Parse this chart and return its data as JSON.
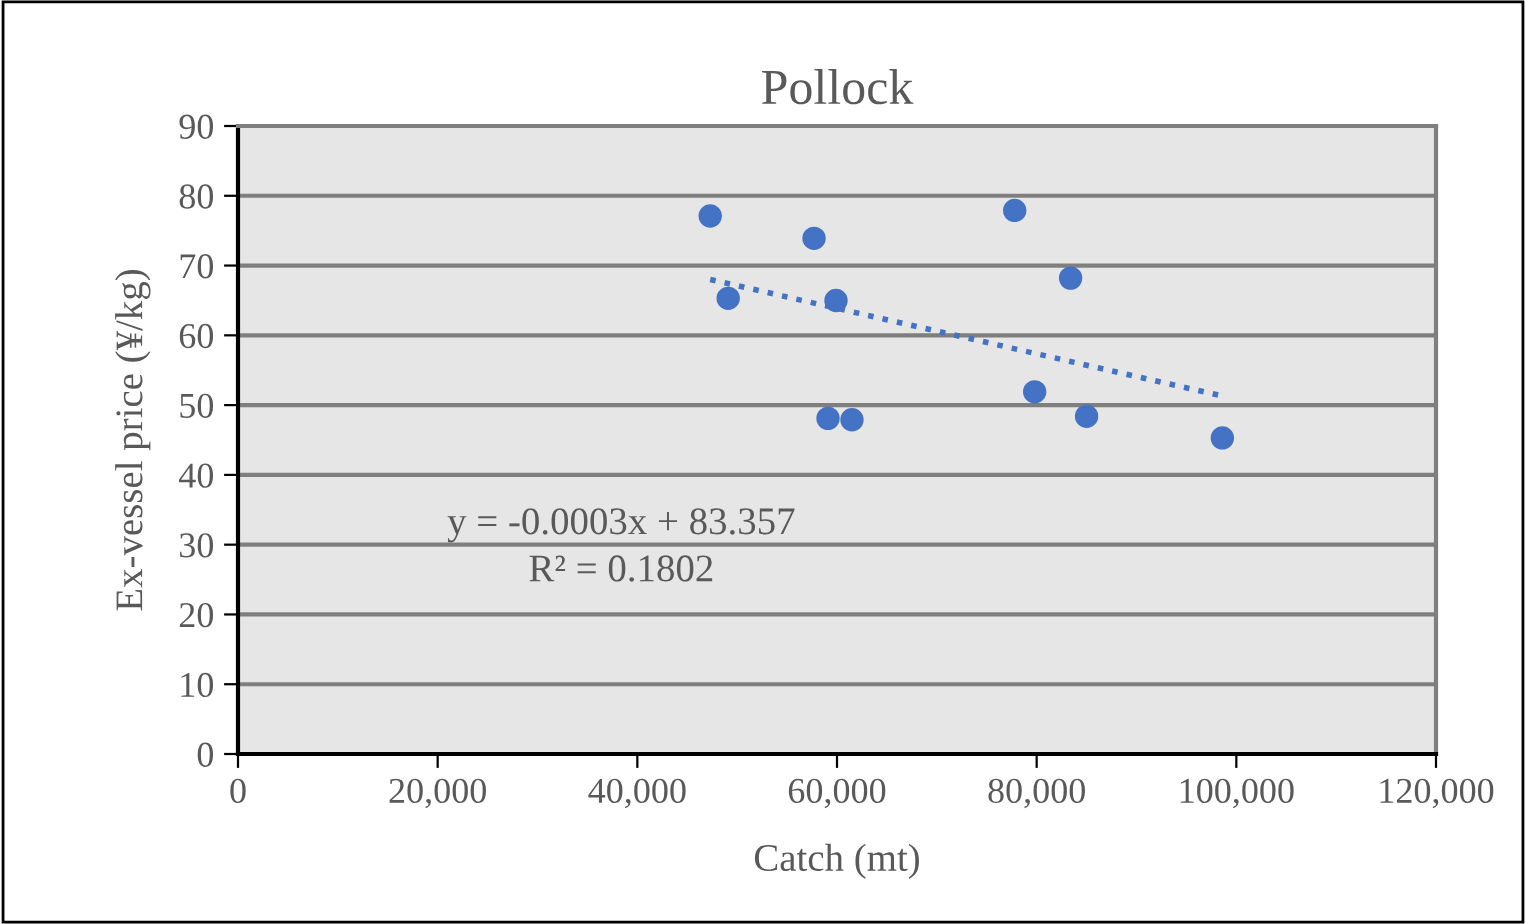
{
  "chart_data": {
    "type": "scatter",
    "title": "Pollock",
    "xlabel": "Catch (mt)",
    "ylabel": "Ex-vessel price (¥/kg)",
    "xlim": [
      0,
      120000
    ],
    "xticks": [
      {
        "value": 0,
        "label": "0"
      },
      {
        "value": 20000,
        "label": "20,000"
      },
      {
        "value": 40000,
        "label": "40,000"
      },
      {
        "value": 60000,
        "label": "60,000"
      },
      {
        "value": 80000,
        "label": "80,000"
      },
      {
        "value": 100000,
        "label": "100,000"
      },
      {
        "value": 120000,
        "label": "120,000"
      }
    ],
    "ylim": [
      0,
      90
    ],
    "yticks": [
      0,
      10,
      20,
      30,
      40,
      50,
      60,
      70,
      80,
      90
    ],
    "grid": "y",
    "marker": "circle",
    "series": [
      {
        "color": "#4472c4",
        "x": [
          47300,
          49100,
          57700,
          59900,
          59100,
          61500,
          77800,
          83400,
          79800,
          85000,
          98600
        ],
        "values": [
          77.1,
          65.3,
          73.9,
          65.0,
          48.1,
          47.9,
          77.9,
          68.2,
          51.9,
          48.4,
          45.3
        ]
      },
      {
        "type": "line",
        "color": "#4472c4",
        "line_style": "dotted",
        "marker": "none",
        "x": [
          47300,
          98600
        ],
        "values": [
          68.0,
          51.3
        ]
      }
    ],
    "annotations": [
      "y = -0.0003x + 83.357",
      "R² = 0.1802"
    ]
  }
}
